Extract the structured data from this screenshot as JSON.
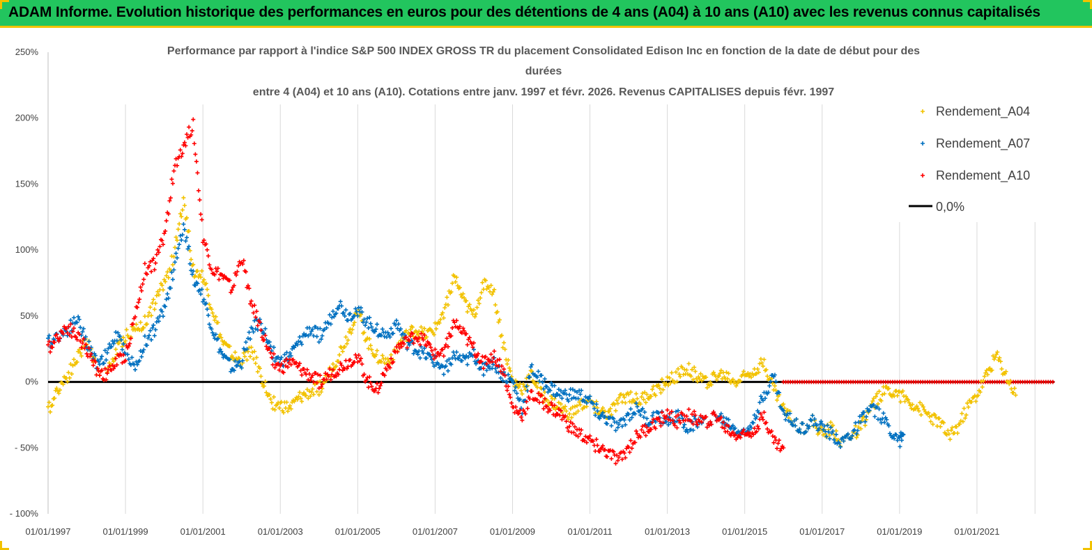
{
  "header": {
    "title": "ADAM Informe. Evolution historique des performances en euros pour des détentions de 4 ans (A04) à 10 ans (A10) avec les revenus connus capitalisés",
    "background": "#22c55e",
    "border": "#f2c200"
  },
  "chart_data": {
    "type": "scatter",
    "title": [
      "Performance par rapport à l'indice S&P 500 INDEX GROSS TR  du placement Consolidated Edison Inc en fonction de la date de début pour des",
      "durées",
      "entre 4 (A04) et 10 ans (A10). Cotations entre janv. 1997 et févr. 2026. Revenus CAPITALISES depuis févr. 1997"
    ],
    "xlabel": "",
    "ylabel": "",
    "x_ticks": [
      "01/01/1997",
      "01/01/1999",
      "01/01/2001",
      "01/01/2003",
      "01/01/2005",
      "01/01/2007",
      "01/01/2009",
      "01/01/2011",
      "01/01/2013",
      "01/01/2015",
      "01/01/2017",
      "01/01/2019",
      "01/01/2021"
    ],
    "xlim": [
      "01/01/1997",
      "01/01/2023"
    ],
    "y_ticks": [
      "250%",
      "200%",
      "150%",
      "100%",
      "50%",
      "0%",
      "- 50%",
      "- 100%"
    ],
    "ylim": [
      -100,
      250
    ],
    "grid": "vertical",
    "legend_position": "top-right",
    "marker": "+",
    "series": [
      {
        "name": "Rendement_A04",
        "color": "#f2c200",
        "x": [
          1997.0,
          1997.25,
          1997.5,
          1997.75,
          1998.0,
          1998.25,
          1998.5,
          1998.75,
          1999.0,
          1999.25,
          1999.5,
          1999.75,
          2000.0,
          2000.25,
          2000.5,
          2000.75,
          2001.0,
          2001.25,
          2001.5,
          2001.75,
          2002.0,
          2002.25,
          2002.5,
          2002.75,
          2003.0,
          2003.25,
          2003.5,
          2003.75,
          2004.0,
          2004.25,
          2004.5,
          2004.75,
          2005.0,
          2005.25,
          2005.5,
          2005.75,
          2006.0,
          2006.25,
          2006.5,
          2006.75,
          2007.0,
          2007.25,
          2007.5,
          2007.75,
          2008.0,
          2008.25,
          2008.5,
          2008.75,
          2009.0,
          2009.25,
          2009.5,
          2009.75,
          2010.0,
          2010.25,
          2010.5,
          2010.75,
          2011.0,
          2011.25,
          2011.5,
          2011.75,
          2012.0,
          2012.25,
          2012.5,
          2012.75,
          2013.0,
          2013.25,
          2013.5,
          2013.75,
          2014.0,
          2014.25,
          2014.5,
          2014.75,
          2015.0,
          2015.25,
          2015.5,
          2015.75,
          2016.0,
          2016.25,
          2016.5,
          2016.75,
          2017.0,
          2017.25,
          2017.5,
          2017.75,
          2018.0,
          2018.25,
          2018.5,
          2018.75,
          2019.0,
          2019.25,
          2019.5,
          2019.75,
          2020.0,
          2020.25,
          2020.5,
          2020.75,
          2021.0,
          2021.25,
          2021.5,
          2021.75,
          2022.0
        ],
        "y": [
          -22,
          -5,
          5,
          18,
          32,
          10,
          5,
          22,
          35,
          40,
          45,
          60,
          75,
          95,
          140,
          85,
          80,
          55,
          30,
          20,
          15,
          25,
          5,
          -15,
          -18,
          -20,
          -12,
          -8,
          -5,
          5,
          20,
          35,
          55,
          30,
          20,
          15,
          25,
          35,
          40,
          35,
          40,
          55,
          80,
          60,
          50,
          75,
          70,
          30,
          0,
          -5,
          5,
          -10,
          -15,
          -20,
          -25,
          -18,
          -15,
          -22,
          -25,
          -15,
          -10,
          -15,
          -10,
          -5,
          0,
          5,
          10,
          5,
          0,
          5,
          5,
          0,
          5,
          10,
          15,
          -5,
          -20,
          -30,
          -35,
          -30,
          -40,
          -35,
          -45,
          -40,
          -35,
          -20,
          -10,
          -5,
          -10,
          -15,
          -20,
          -25,
          -30,
          -40,
          -35,
          -20,
          -10,
          5,
          20,
          5,
          -10
        ]
      },
      {
        "name": "Rendement_A07",
        "color": "#0070c0",
        "x": [
          1997.0,
          1997.25,
          1997.5,
          1997.75,
          1998.0,
          1998.25,
          1998.5,
          1998.75,
          1999.0,
          1999.25,
          1999.5,
          1999.75,
          2000.0,
          2000.25,
          2000.5,
          2000.75,
          2001.0,
          2001.25,
          2001.5,
          2001.75,
          2002.0,
          2002.25,
          2002.5,
          2002.75,
          2003.0,
          2003.25,
          2003.5,
          2003.75,
          2004.0,
          2004.25,
          2004.5,
          2004.75,
          2005.0,
          2005.25,
          2005.5,
          2005.75,
          2006.0,
          2006.25,
          2006.5,
          2006.75,
          2007.0,
          2007.25,
          2007.5,
          2007.75,
          2008.0,
          2008.25,
          2008.5,
          2008.75,
          2009.0,
          2009.25,
          2009.5,
          2009.75,
          2010.0,
          2010.25,
          2010.5,
          2010.75,
          2011.0,
          2011.25,
          2011.5,
          2011.75,
          2012.0,
          2012.25,
          2012.5,
          2012.75,
          2013.0,
          2013.25,
          2013.5,
          2013.75,
          2014.0,
          2014.25,
          2014.5,
          2014.75,
          2015.0,
          2015.25,
          2015.5,
          2015.75,
          2016.0,
          2016.25,
          2016.5,
          2016.75,
          2017.0,
          2017.25,
          2017.5,
          2017.75,
          2018.0,
          2018.25,
          2018.5,
          2018.75,
          2019.0,
          2019.1
        ],
        "y": [
          30,
          35,
          40,
          48,
          30,
          15,
          20,
          35,
          25,
          10,
          30,
          40,
          55,
          85,
          120,
          80,
          65,
          40,
          20,
          10,
          15,
          40,
          45,
          25,
          15,
          20,
          30,
          40,
          35,
          45,
          60,
          50,
          55,
          45,
          40,
          35,
          45,
          30,
          25,
          20,
          15,
          10,
          20,
          15,
          20,
          10,
          15,
          5,
          0,
          -20,
          10,
          0,
          -5,
          -10,
          -10,
          -10,
          -15,
          -25,
          -30,
          -35,
          -25,
          -20,
          -30,
          -25,
          -30,
          -25,
          -35,
          -30,
          -30,
          -25,
          -30,
          -35,
          -40,
          -25,
          -10,
          5,
          -25,
          -30,
          -35,
          -30,
          -35,
          -40,
          -45,
          -40,
          -30,
          -20,
          -25,
          -35,
          -45,
          -40
        ]
      },
      {
        "name": "Rendement_A10",
        "color": "#ff0000",
        "x": [
          1997.0,
          1997.25,
          1997.5,
          1997.75,
          1998.0,
          1998.25,
          1998.5,
          1998.75,
          1999.0,
          1999.25,
          1999.5,
          1999.75,
          2000.0,
          2000.25,
          2000.5,
          2000.75,
          2001.0,
          2001.25,
          2001.5,
          2001.75,
          2002.0,
          2002.25,
          2002.5,
          2002.75,
          2003.0,
          2003.25,
          2003.5,
          2003.75,
          2004.0,
          2004.25,
          2004.5,
          2004.75,
          2005.0,
          2005.25,
          2005.5,
          2005.75,
          2006.0,
          2006.25,
          2006.5,
          2006.75,
          2007.0,
          2007.25,
          2007.5,
          2007.75,
          2008.0,
          2008.25,
          2008.5,
          2008.75,
          2009.0,
          2009.25,
          2009.5,
          2009.75,
          2010.0,
          2010.25,
          2010.5,
          2010.75,
          2011.0,
          2011.25,
          2011.5,
          2011.75,
          2012.0,
          2012.25,
          2012.5,
          2012.75,
          2013.0,
          2013.25,
          2013.5,
          2013.75,
          2014.0,
          2014.25,
          2014.5,
          2014.75,
          2015.0,
          2015.25,
          2015.5,
          2015.75,
          2016.0
        ],
        "y": [
          25,
          35,
          42,
          35,
          25,
          10,
          5,
          15,
          20,
          50,
          85,
          90,
          110,
          160,
          180,
          195,
          110,
          85,
          80,
          70,
          95,
          60,
          40,
          20,
          10,
          15,
          10,
          5,
          0,
          5,
          10,
          15,
          20,
          0,
          -5,
          10,
          25,
          30,
          35,
          30,
          20,
          25,
          45,
          35,
          25,
          15,
          20,
          10,
          -20,
          -25,
          -10,
          -15,
          -20,
          -25,
          -35,
          -40,
          -45,
          -50,
          -55,
          -60,
          -50,
          -40,
          -35,
          -30,
          -25,
          -30,
          -25,
          -28,
          -30,
          -25,
          -35,
          -40,
          -40,
          -35,
          -25,
          -45,
          -50
        ]
      },
      {
        "name": "0,0%",
        "color": "#000000",
        "x": [
          1997.0,
          2023.0
        ],
        "y": [
          0,
          0
        ]
      }
    ],
    "flat_segment": {
      "series": "Rendement_A10",
      "color": "#ff0000",
      "x_start": 2016.0,
      "x_end": 2023.0,
      "y": 0
    }
  }
}
